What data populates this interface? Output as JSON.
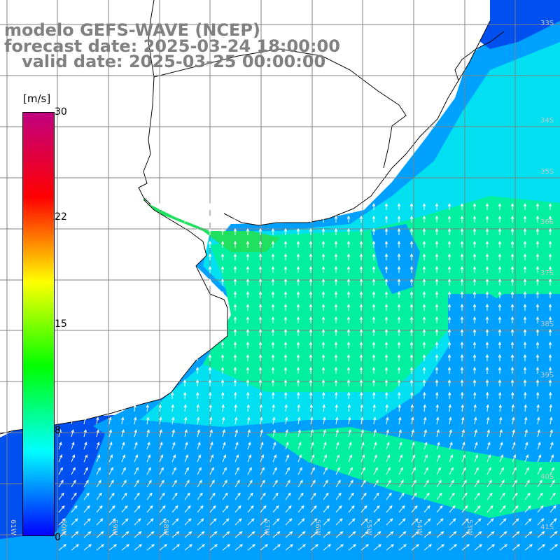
{
  "title": {
    "line1": "modelo GEFS-WAVE (NCEP)",
    "line2": "forecast date: 2025-03-24 18:00:00",
    "line3": "   valid date: 2025-03-25 00:00:00"
  },
  "colorbar": {
    "unit": "[m/s]",
    "ticks": [
      "30",
      "22",
      "15",
      "8",
      "0"
    ],
    "min": 0,
    "max": 30,
    "stops": [
      "#0000ff",
      "#00ffff",
      "#00ff00",
      "#ffff00",
      "#ff0000",
      "#c00080"
    ]
  },
  "axes": {
    "lat_labels": [
      "33S",
      "34S",
      "35S",
      "36S",
      "37S",
      "38S",
      "39S",
      "40S",
      "41S"
    ],
    "lon_labels": [
      "61W",
      "60W",
      "59W",
      "58W",
      "57W",
      "56W",
      "55W",
      "54W",
      "53W"
    ]
  },
  "map": {
    "land_color": "#ffffff",
    "grid_color": "#808080",
    "coast_color": "#000000",
    "arrow_color": "#ffffff",
    "field_colors": {
      "calm": "#0050f0",
      "light": "#00a0ff",
      "moderate": "#00e0f0",
      "fresh": "#00f0a0",
      "strong": "#20e060"
    }
  }
}
